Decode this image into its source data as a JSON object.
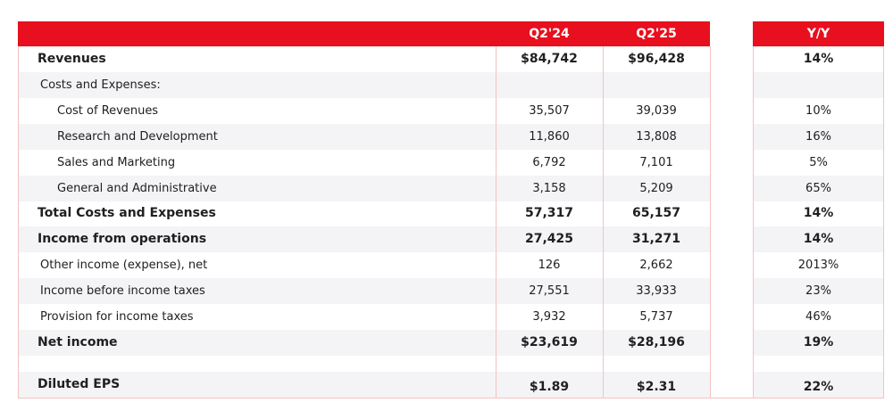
{
  "header": {
    "columns": [
      "Q2'24",
      "Q2'25",
      "Y/Y"
    ]
  },
  "table": {
    "rows": [
      [
        "Revenues",
        "$84,742",
        "$96,428",
        "14%"
      ],
      [
        "Costs and Expenses:",
        "",
        "",
        ""
      ],
      [
        "Cost of Revenues",
        "35,507",
        "39,039",
        "10%"
      ],
      [
        "Research and Development",
        "11,860",
        "13,808",
        "16%"
      ],
      [
        "Sales and Marketing",
        "6,792",
        "7,101",
        "5%"
      ],
      [
        "General and Administrative",
        "3,158",
        "5,209",
        "65%"
      ],
      [
        "Total Costs and Expenses",
        "57,317",
        "65,157",
        "14%"
      ],
      [
        "Income from operations",
        "27,425",
        "31,271",
        "14%"
      ],
      [
        "Other income (expense), net",
        "126",
        "2,662",
        "2013%"
      ],
      [
        "Income before income taxes",
        "27,551",
        "33,933",
        "23%"
      ],
      [
        "Provision for income taxes",
        "3,932",
        "5,737",
        "46%"
      ],
      [
        "Net income",
        "$23,619",
        "$28,196",
        "19%"
      ],
      [
        "Diluted EPS",
        "$1.89",
        "$2.31",
        "22%"
      ]
    ]
  }
}
